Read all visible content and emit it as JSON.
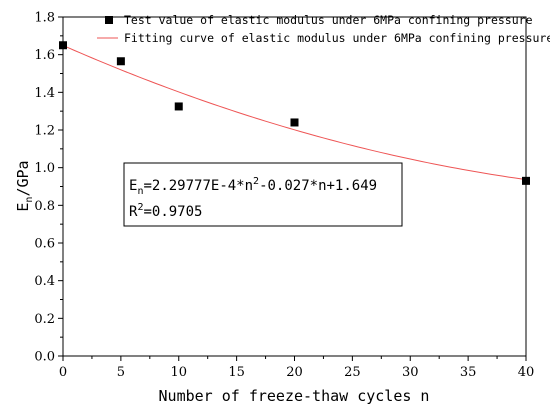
{
  "chart_data": {
    "type": "scatter",
    "xlabel": "Number of freeze-thaw cycles n",
    "ylabel_main": "E",
    "ylabel_sub": "n",
    "ylabel_rest": "/GPa",
    "xlim": [
      0,
      40
    ],
    "ylim": [
      0.0,
      1.8
    ],
    "xticks": [
      0,
      5,
      10,
      15,
      20,
      25,
      30,
      35,
      40
    ],
    "yticks": [
      "0.0",
      "0.2",
      "0.4",
      "0.6",
      "0.8",
      "1.0",
      "1.2",
      "1.4",
      "1.6",
      "1.8"
    ],
    "grid": false,
    "legend_position": "top-right",
    "series": [
      {
        "name": "Test value of elastic modulus under 6MPa confining pressure",
        "kind": "scatter",
        "marker": "square",
        "color": "#000000",
        "x": [
          0,
          5,
          10,
          20,
          40
        ],
        "y": [
          1.65,
          1.565,
          1.325,
          1.24,
          0.93
        ]
      },
      {
        "name": "Fitting curve of elastic modulus under 6MPa confining pressure",
        "kind": "line",
        "color": "#ee5555",
        "coefficients": {
          "a": 0.000229777,
          "b": -0.027,
          "c": 1.649
        },
        "x_range": [
          0,
          40
        ]
      }
    ],
    "annotation": {
      "line1": {
        "p1": "E",
        "p1_sub": "n",
        "p2": "=2.29777E-4*n",
        "p2_sup": "2",
        "p3": "-0.027*n+1.649"
      },
      "line2": {
        "p1": "R",
        "p1_sup": "2",
        "p2": "=0.9705"
      }
    }
  }
}
